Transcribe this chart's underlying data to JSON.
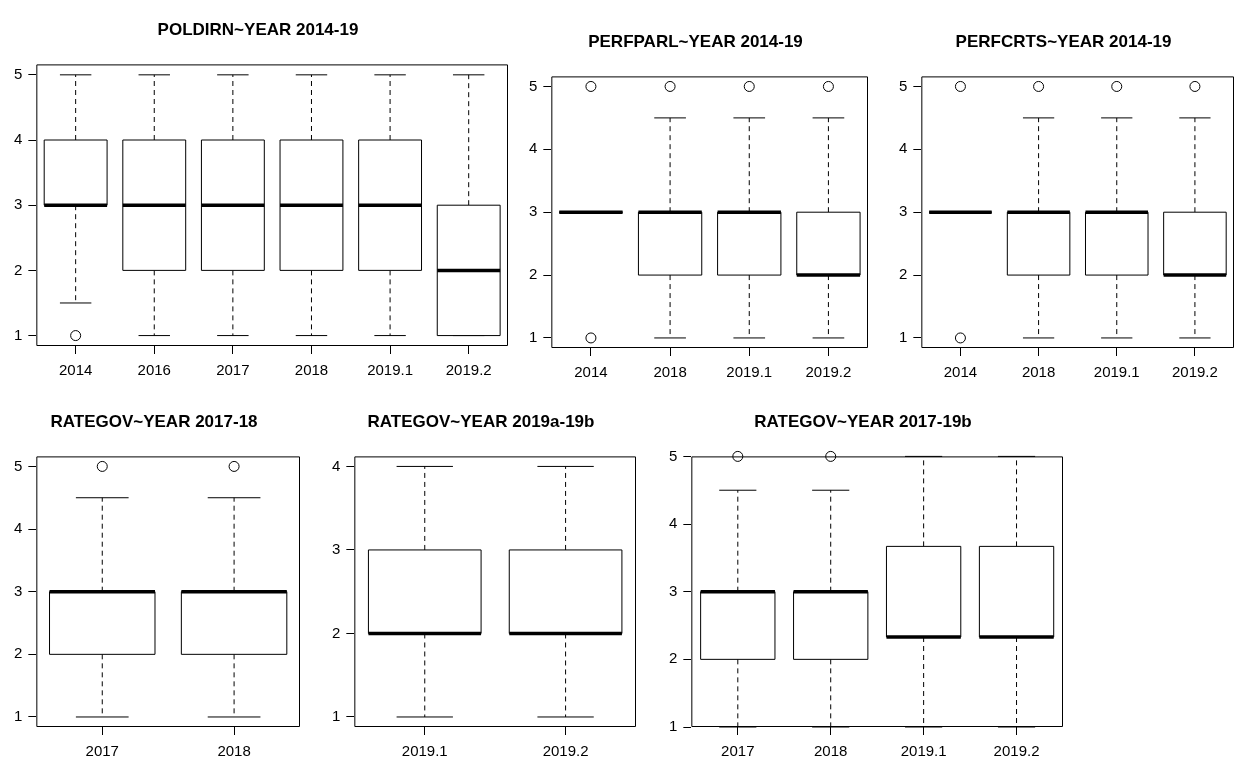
{
  "chart_data": [
    {
      "type": "box",
      "title": "POLDIRN~YEAR 2014-19",
      "categories": [
        "2014",
        "2016",
        "2017",
        "2018",
        "2019.1",
        "2019.2"
      ],
      "ylim": [
        0.84,
        5.16
      ],
      "yticks": [
        1,
        2,
        3,
        4,
        5
      ],
      "boxes": [
        {
          "low": 1.5,
          "q1": 3,
          "median": 3,
          "q3": 4,
          "high": 5,
          "outliers": [
            1
          ]
        },
        {
          "low": 1,
          "q1": 2,
          "median": 3,
          "q3": 4,
          "high": 5
        },
        {
          "low": 1,
          "q1": 2,
          "median": 3,
          "q3": 4,
          "high": 5
        },
        {
          "low": 1,
          "q1": 2,
          "median": 3,
          "q3": 4,
          "high": 5
        },
        {
          "low": 1,
          "q1": 2,
          "median": 3,
          "q3": 4,
          "high": 5
        },
        {
          "low": 1,
          "q1": 1,
          "median": 2,
          "q3": 3,
          "high": 5
        }
      ]
    },
    {
      "type": "box",
      "title": "PERFPARL~YEAR 2014-19",
      "categories": [
        "2014",
        "2018",
        "2019.1",
        "2019.2"
      ],
      "ylim": [
        0.84,
        5.16
      ],
      "yticks": [
        1,
        2,
        3,
        4,
        5
      ],
      "boxes": [
        {
          "low": 3,
          "q1": 3,
          "median": 3,
          "q3": 3,
          "high": 3,
          "outliers": [
            5,
            1
          ]
        },
        {
          "low": 1,
          "q1": 2,
          "median": 3,
          "q3": 3,
          "high": 4.5,
          "outliers": [
            5
          ]
        },
        {
          "low": 1,
          "q1": 2,
          "median": 3,
          "q3": 3,
          "high": 4.5,
          "outliers": [
            5
          ]
        },
        {
          "low": 1,
          "q1": 2,
          "median": 2,
          "q3": 3,
          "high": 4.5,
          "outliers": [
            5
          ]
        }
      ]
    },
    {
      "type": "box",
      "title": "PERFCRTS~YEAR 2014-19",
      "categories": [
        "2014",
        "2018",
        "2019.1",
        "2019.2"
      ],
      "ylim": [
        0.84,
        5.16
      ],
      "yticks": [
        1,
        2,
        3,
        4,
        5
      ],
      "boxes": [
        {
          "low": 3,
          "q1": 3,
          "median": 3,
          "q3": 3,
          "high": 3,
          "outliers": [
            5,
            1
          ]
        },
        {
          "low": 1,
          "q1": 2,
          "median": 3,
          "q3": 3,
          "high": 4.5,
          "outliers": [
            5
          ]
        },
        {
          "low": 1,
          "q1": 2,
          "median": 3,
          "q3": 3,
          "high": 4.5,
          "outliers": [
            5
          ]
        },
        {
          "low": 1,
          "q1": 2,
          "median": 2,
          "q3": 3,
          "high": 4.5,
          "outliers": [
            5
          ]
        }
      ]
    },
    {
      "type": "box",
      "title": "RATEGOV~YEAR 2017-18",
      "categories": [
        "2017",
        "2018"
      ],
      "ylim": [
        0.84,
        5.16
      ],
      "yticks": [
        1,
        2,
        3,
        4,
        5
      ],
      "boxes": [
        {
          "low": 1,
          "q1": 2,
          "median": 3,
          "q3": 3,
          "high": 4.5,
          "outliers": [
            5
          ]
        },
        {
          "low": 1,
          "q1": 2,
          "median": 3,
          "q3": 3,
          "high": 4.5,
          "outliers": [
            5
          ]
        }
      ]
    },
    {
      "type": "box",
      "title": "RATEGOV~YEAR 2019a-19b",
      "categories": [
        "2019.1",
        "2019.2"
      ],
      "ylim": [
        0.88,
        4.12
      ],
      "yticks": [
        1,
        2,
        3,
        4
      ],
      "boxes": [
        {
          "low": 1,
          "q1": 2,
          "median": 2,
          "q3": 3,
          "high": 4
        },
        {
          "low": 1,
          "q1": 2,
          "median": 2,
          "q3": 3,
          "high": 4
        }
      ]
    },
    {
      "type": "box",
      "title": "RATEGOV~YEAR 2017-19b",
      "categories": [
        "2017",
        "2018",
        "2019.1",
        "2019.2"
      ],
      "ylim": [
        1,
        5
      ],
      "yticks": [
        1,
        2,
        3,
        4,
        5
      ],
      "boxes": [
        {
          "low": 1,
          "q1": 2,
          "median": 3,
          "q3": 3,
          "high": 4.5,
          "outliers": [
            5
          ]
        },
        {
          "low": 1,
          "q1": 2,
          "median": 3,
          "q3": 3,
          "high": 4.5,
          "outliers": [
            5
          ]
        },
        {
          "low": 1,
          "q1": 2.33,
          "median": 2.33,
          "q3": 3.67,
          "high": 5
        },
        {
          "low": 1,
          "q1": 2.33,
          "median": 2.33,
          "q3": 3.67,
          "high": 5
        }
      ]
    }
  ]
}
